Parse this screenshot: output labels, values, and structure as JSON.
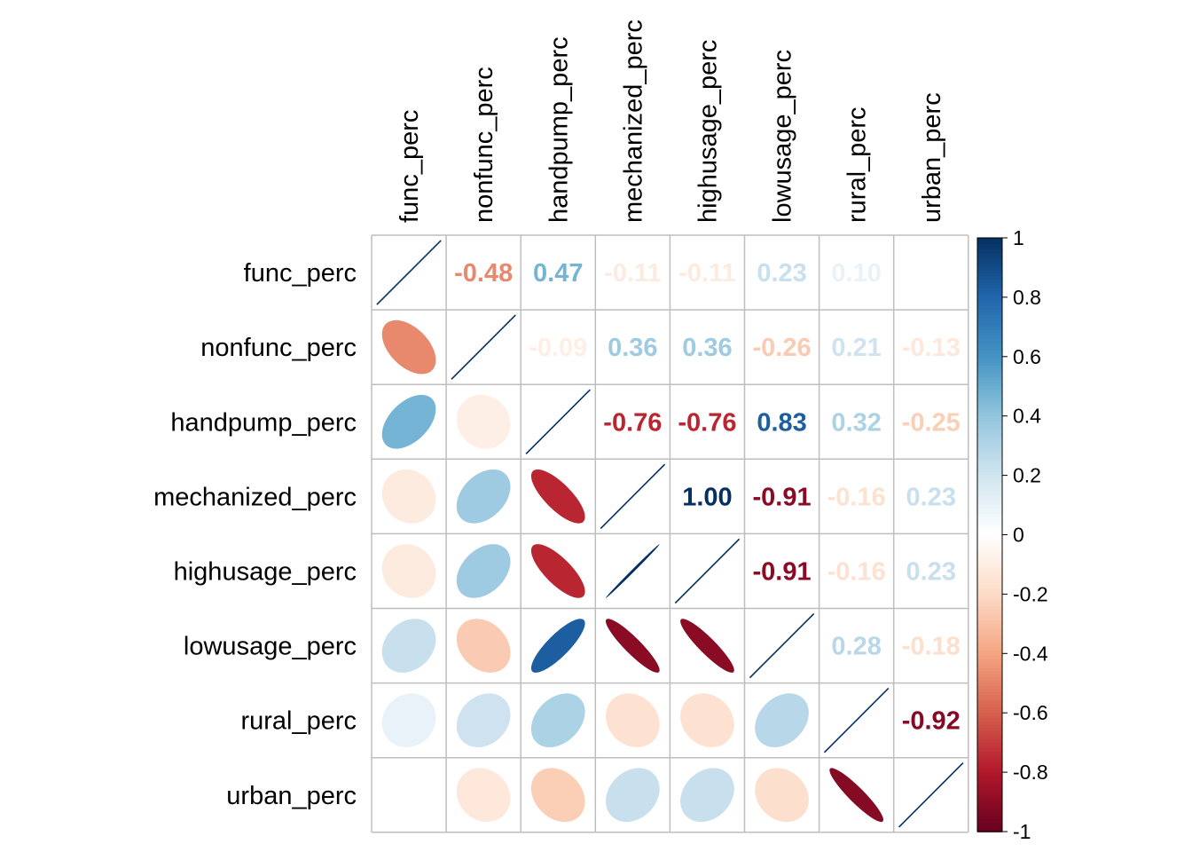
{
  "chart_data": {
    "type": "heatmap",
    "method": "mixed (lower: ellipse, upper: number)",
    "variables": [
      "func_perc",
      "nonfunc_perc",
      "handpump_perc",
      "mechanized_perc",
      "highusage_perc",
      "lowusage_perc",
      "rural_perc",
      "urban_perc"
    ],
    "matrix": [
      [
        1.0,
        -0.48,
        0.47,
        -0.11,
        -0.11,
        0.23,
        0.1,
        0.0
      ],
      [
        -0.48,
        1.0,
        -0.09,
        0.36,
        0.36,
        -0.26,
        0.21,
        -0.13
      ],
      [
        0.47,
        -0.09,
        1.0,
        -0.76,
        -0.76,
        0.83,
        0.32,
        -0.25
      ],
      [
        -0.11,
        0.36,
        -0.76,
        1.0,
        1.0,
        -0.91,
        -0.16,
        0.23
      ],
      [
        -0.11,
        0.36,
        -0.76,
        1.0,
        1.0,
        -0.91,
        -0.16,
        0.23
      ],
      [
        0.23,
        -0.26,
        0.83,
        -0.91,
        -0.91,
        1.0,
        0.28,
        -0.18
      ],
      [
        0.1,
        0.21,
        0.32,
        -0.16,
        -0.16,
        0.28,
        1.0,
        -0.92
      ],
      [
        0.0,
        -0.13,
        -0.25,
        0.23,
        0.23,
        -0.18,
        -0.92,
        1.0
      ]
    ],
    "upper_labels": [
      [
        null,
        "-0.48",
        "0.47",
        "-0.11",
        "-0.11",
        "0.23",
        "0.10",
        "0.00"
      ],
      [
        null,
        null,
        "-0.09",
        "0.36",
        "0.36",
        "-0.26",
        "0.21",
        "-0.13"
      ],
      [
        null,
        null,
        null,
        "-0.76",
        "-0.76",
        "0.83",
        "0.32",
        "-0.25"
      ],
      [
        null,
        null,
        null,
        null,
        "1.00",
        "-0.91",
        "-0.16",
        "0.23"
      ],
      [
        null,
        null,
        null,
        null,
        null,
        "-0.91",
        "-0.16",
        "0.23"
      ],
      [
        null,
        null,
        null,
        null,
        null,
        null,
        "0.28",
        "-0.18"
      ],
      [
        null,
        null,
        null,
        null,
        null,
        null,
        null,
        "-0.92"
      ],
      [
        null,
        null,
        null,
        null,
        null,
        null,
        null,
        null
      ]
    ],
    "colorbar": {
      "ticks": [
        "1",
        "0.8",
        "0.6",
        "0.4",
        "0.2",
        "0",
        "-0.2",
        "-0.4",
        "-0.6",
        "-0.8",
        "-1"
      ],
      "range": [
        -1,
        1
      ]
    },
    "palette": [
      "#67001F",
      "#B2182B",
      "#D6604D",
      "#F4A582",
      "#FDDBC7",
      "#FFFFFF",
      "#D1E5F0",
      "#92C5DE",
      "#4393C3",
      "#2166AC",
      "#053061"
    ],
    "grid_color": "#BEBEBE",
    "diagonal_color": "#053061"
  }
}
